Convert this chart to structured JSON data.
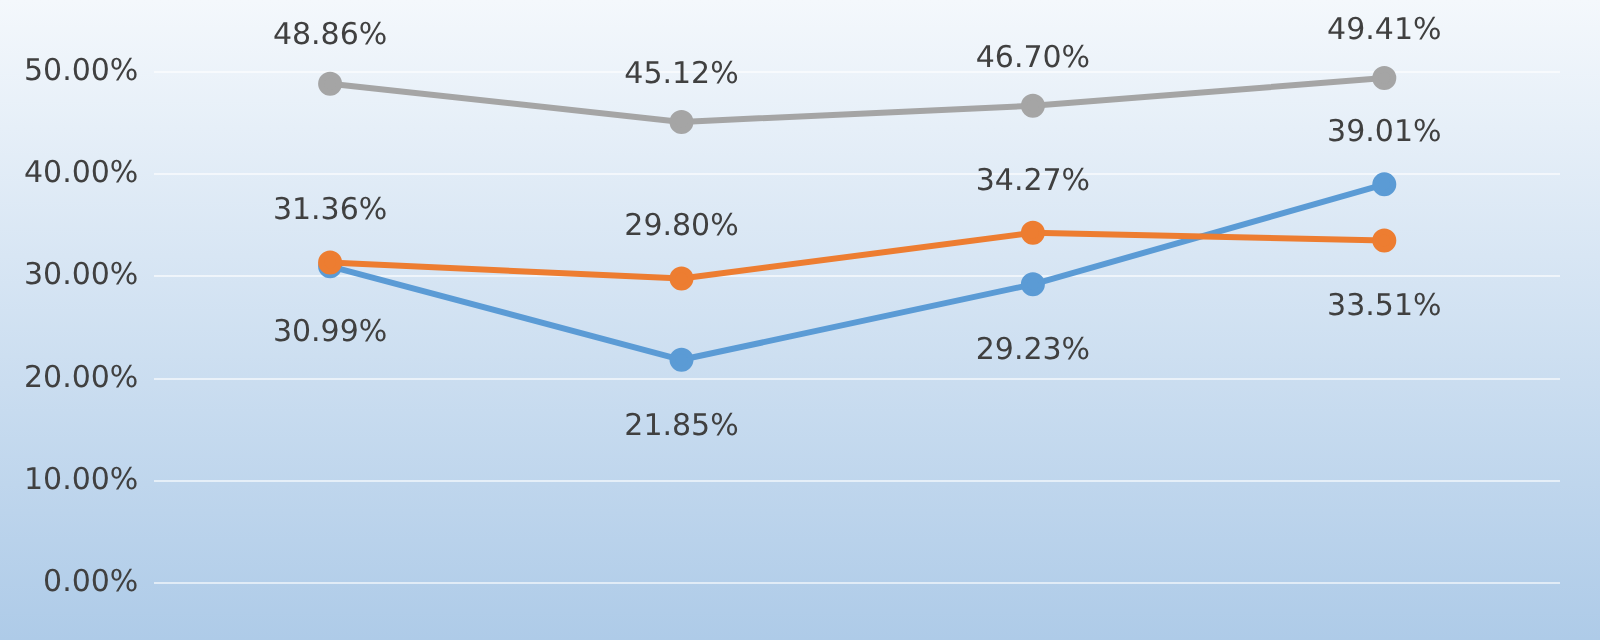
{
  "chart_data": {
    "type": "line",
    "categories": [
      null,
      null,
      null,
      null
    ],
    "series": [
      {
        "color": "#a5a5a5",
        "values": [
          48.86,
          45.12,
          46.7,
          49.41
        ],
        "value_labels": [
          "48.86%",
          "45.12%",
          "46.70%",
          "49.41%"
        ]
      },
      {
        "color": "#ed7d31",
        "values": [
          31.36,
          29.8,
          34.27,
          33.51
        ],
        "value_labels": [
          "31.36%",
          "29.80%",
          "34.27%",
          "33.51%"
        ]
      },
      {
        "color": "#5b9bd5",
        "values": [
          30.99,
          21.85,
          29.23,
          39.01
        ],
        "value_labels": [
          "30.99%",
          "21.85%",
          "29.23%",
          "39.01%"
        ]
      }
    ],
    "ylim": [
      0,
      50
    ],
    "yticks": [
      {
        "value": 0,
        "label": "0.00%"
      },
      {
        "value": 10,
        "label": "10.00%"
      },
      {
        "value": 20,
        "label": "20.00%"
      },
      {
        "value": 30,
        "label": "30.00%"
      },
      {
        "value": 40,
        "label": "40.00%"
      },
      {
        "value": 50,
        "label": "50.00%"
      }
    ],
    "grid": "y",
    "legend": false,
    "marker": "circle",
    "line_style": "solid"
  }
}
